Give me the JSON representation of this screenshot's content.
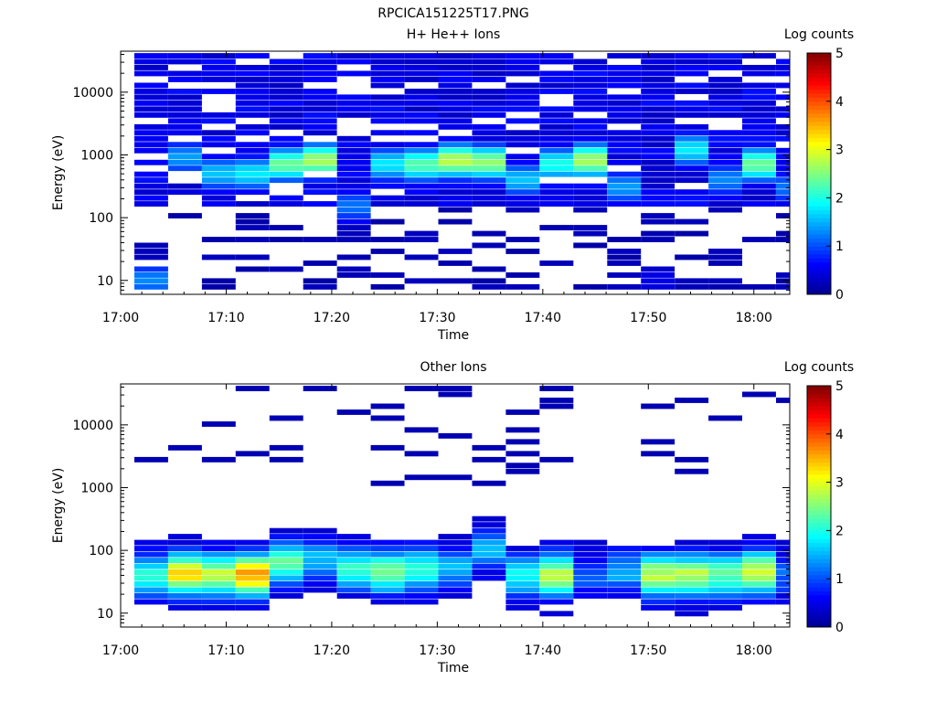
{
  "figure_title": "RPCICA151225T17.PNG",
  "colormap": [
    "#00008f",
    "#0000ff",
    "#0080ff",
    "#00ffff",
    "#80ff80",
    "#ffff00",
    "#ff8000",
    "#ff0000",
    "#800000"
  ],
  "chart_data": [
    {
      "type": "heatmap",
      "title": "H+ He++ Ions",
      "xlabel": "Time",
      "ylabel": "Energy (eV)",
      "colorbar_label": "Log counts",
      "colorbar_range": [
        0,
        5
      ],
      "colorbar_ticks": [
        "0",
        "1",
        "2",
        "3",
        "4",
        "5"
      ],
      "x_ticks": [
        "17:00",
        "17:10",
        "17:20",
        "17:30",
        "17:40",
        "17:50",
        "18:00"
      ],
      "y_ticks": [
        "10",
        "100",
        "1000",
        "10000"
      ],
      "y_scale": "log",
      "ylim": [
        6,
        45000
      ],
      "time_bins_start_minutes_after_17": [
        1.3,
        4.5,
        7.7,
        10.9,
        14.1,
        17.3,
        20.5,
        23.7,
        26.9,
        30.1,
        33.3,
        36.5,
        39.7,
        42.9,
        46.1,
        49.3,
        52.5,
        55.7,
        58.9,
        62.1
      ],
      "energy_profile_peak_eV": [
        10,
        900,
        500,
        500,
        700,
        800,
        150,
        700,
        700,
        800,
        750,
        400,
        700,
        800,
        300,
        10,
        1200,
        400,
        700,
        300
      ],
      "peak_log_counts": [
        1.3,
        1.4,
        1.6,
        1.8,
        2.4,
        2.7,
        1.2,
        1.8,
        2.3,
        2.8,
        2.6,
        1.6,
        2.0,
        2.7,
        1.4,
        0.5,
        1.8,
        1.3,
        2.4,
        1.2
      ]
    },
    {
      "type": "heatmap",
      "title": "Other Ions",
      "xlabel": "Time",
      "ylabel": "Energy (eV)",
      "colorbar_label": "Log counts",
      "colorbar_range": [
        0,
        5
      ],
      "colorbar_ticks": [
        "0",
        "1",
        "2",
        "3",
        "4",
        "5"
      ],
      "x_ticks": [
        "17:00",
        "17:10",
        "17:20",
        "17:30",
        "17:40",
        "17:50",
        "18:00"
      ],
      "y_ticks": [
        "10",
        "100",
        "1000",
        "10000"
      ],
      "y_scale": "log",
      "ylim": [
        6,
        45000
      ],
      "time_bins_start_minutes_after_17": [
        1.3,
        4.5,
        7.7,
        10.9,
        14.1,
        17.3,
        20.5,
        23.7,
        26.9,
        30.1,
        33.3,
        36.5,
        39.7,
        42.9,
        46.1,
        49.3,
        52.5,
        55.7,
        58.9,
        62.1
      ],
      "peak_energy_eV": [
        40,
        42,
        40,
        40,
        60,
        70,
        50,
        45,
        50,
        55,
        100,
        40,
        40,
        40,
        45,
        40,
        40,
        40,
        45,
        40
      ],
      "peak_log_counts": [
        1.9,
        3.1,
        2.7,
        3.5,
        2.2,
        1.4,
        2.0,
        2.4,
        2.0,
        1.3,
        1.3,
        1.8,
        2.6,
        0.9,
        1.3,
        2.6,
        2.6,
        2.2,
        2.7,
        1.0
      ]
    }
  ]
}
